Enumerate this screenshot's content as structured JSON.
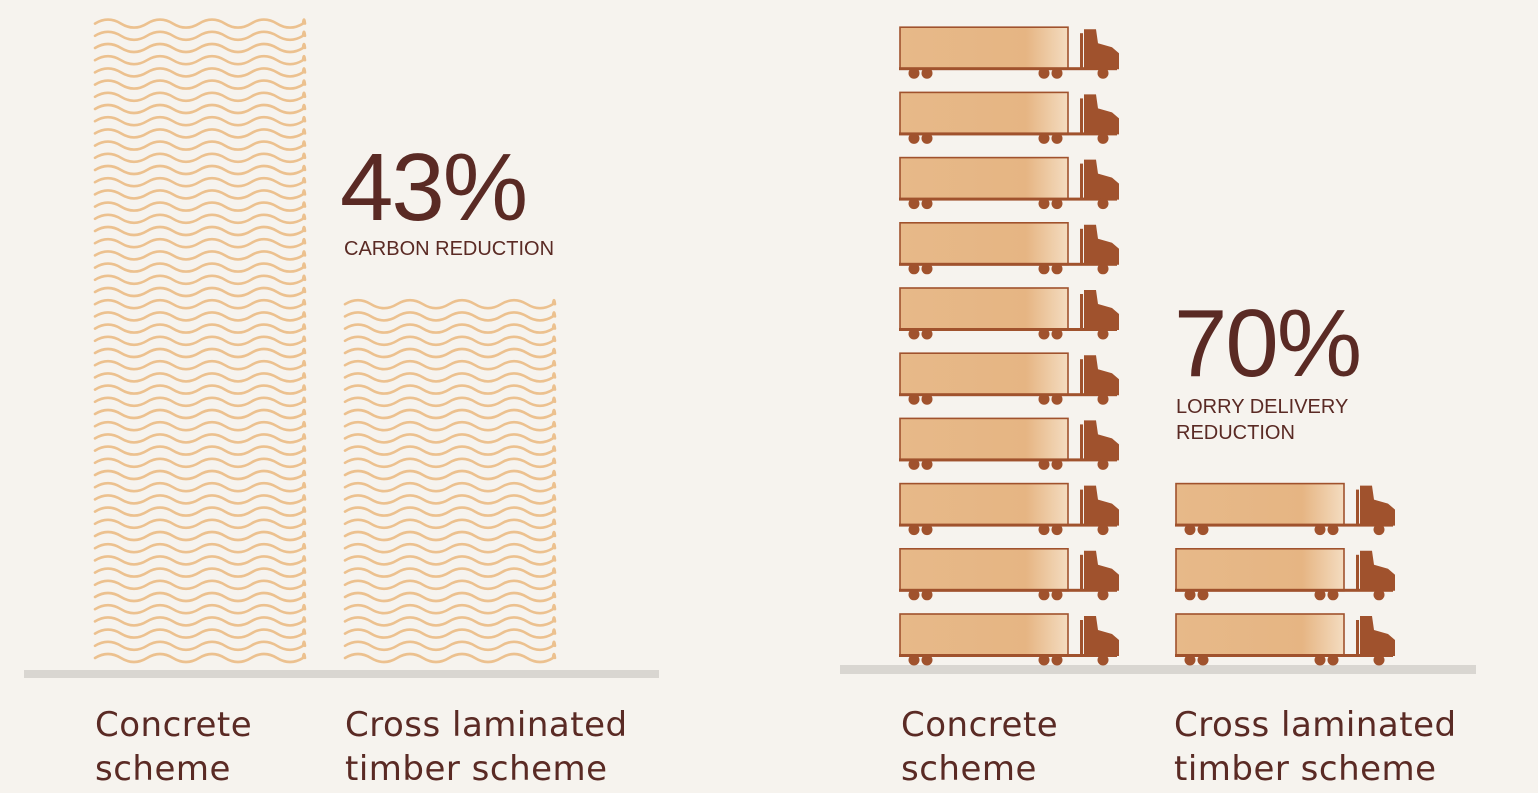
{
  "chart_data": [
    {
      "type": "bar",
      "categories": [
        "Concrete\nscheme",
        "Cross laminated\ntimber scheme"
      ],
      "values": [
        100,
        57
      ],
      "annotation": {
        "value": "43%",
        "label": "CARBON REDUCTION"
      },
      "colors": {
        "waves": "#ecc18f",
        "baseline": "#d9d6d1",
        "text": "#5a2a24"
      }
    },
    {
      "type": "bar",
      "categories": [
        "Concrete\nscheme",
        "Cross laminated\ntimber scheme"
      ],
      "values": [
        10,
        3
      ],
      "annotation": {
        "value": "70%",
        "label": "LORRY DELIVERY\nREDUCTION"
      },
      "colors": {
        "trailer": "#e9b98a",
        "cab": "#a0522d",
        "baseline": "#d9d6d1",
        "text": "#5a2a24"
      }
    }
  ]
}
